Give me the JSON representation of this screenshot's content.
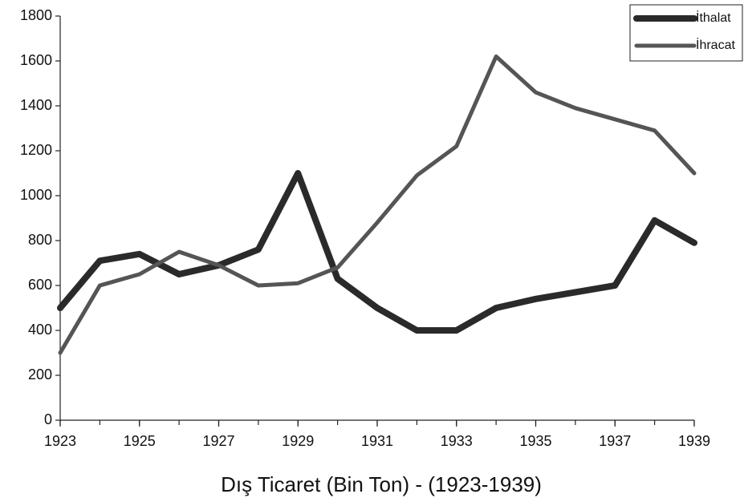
{
  "chart_data": {
    "type": "line",
    "title": "Dış Ticaret (Bin Ton) - (1923-1939)",
    "x": [
      1923,
      1924,
      1925,
      1926,
      1927,
      1928,
      1929,
      1930,
      1931,
      1932,
      1933,
      1934,
      1935,
      1936,
      1937,
      1938,
      1939
    ],
    "series": [
      {
        "name": "İthalat",
        "color": "#2a2a2a",
        "values": [
          500,
          710,
          740,
          650,
          690,
          760,
          1100,
          630,
          500,
          400,
          400,
          500,
          540,
          570,
          600,
          890,
          790
        ]
      },
      {
        "name": "İhracat",
        "color": "#555555",
        "values": [
          300,
          600,
          650,
          750,
          690,
          600,
          610,
          680,
          880,
          1090,
          1220,
          1620,
          1460,
          1390,
          1340,
          1290,
          1100
        ]
      }
    ],
    "xlim": [
      1923,
      1939
    ],
    "xticks": [
      1923,
      1925,
      1927,
      1929,
      1931,
      1933,
      1935,
      1937,
      1939
    ],
    "ylim": [
      0,
      1800
    ],
    "yticks": [
      0,
      200,
      400,
      600,
      800,
      1000,
      1200,
      1400,
      1600,
      1800
    ],
    "legend": "upper right",
    "grid": false
  }
}
